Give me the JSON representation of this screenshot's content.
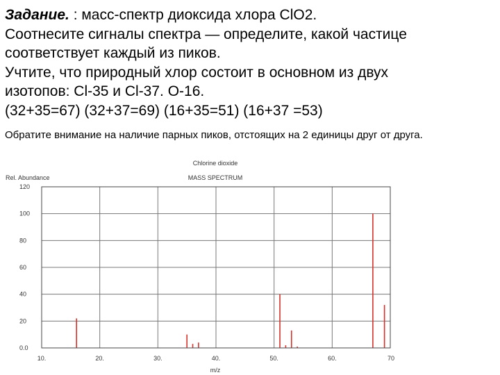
{
  "task": {
    "label": "Задание.",
    "lines": [
      " : масс-спектр диоксида хлора ClO2.",
      "Соотнесите сигналы спектра — определите, какой частице",
      "соответствует каждый из пиков.",
      "Учтите, что природный хлор состоит в основном из двух",
      "изотопов: Cl-35 и Cl-37. O-16.",
      " (32+35=67) (32+37=69) (16+35=51) (16+37 =53)"
    ]
  },
  "note": "Обратите внимание на наличие парных пиков, отстоящих на 2 единицы друг от друга.",
  "dot": ".",
  "chart_data": {
    "type": "bar",
    "title": "Chlorine dioxide",
    "subtitle": "MASS SPECTRUM",
    "ylabel": "Rel. Abundance",
    "xlabel": "m/z",
    "xlim": [
      10,
      70
    ],
    "ylim": [
      0,
      120
    ],
    "xticks": [
      "10.",
      "20.",
      "30.",
      "40.",
      "50.",
      "60.",
      "70"
    ],
    "yticks": [
      "0.0",
      "20",
      "40",
      "60",
      "80",
      "100",
      "120"
    ],
    "peak_color": "#d9302a",
    "peaks": [
      {
        "x": 16,
        "y": 22
      },
      {
        "x": 35,
        "y": 10
      },
      {
        "x": 36,
        "y": 3
      },
      {
        "x": 37,
        "y": 4
      },
      {
        "x": 51,
        "y": 40
      },
      {
        "x": 52,
        "y": 2
      },
      {
        "x": 53,
        "y": 13
      },
      {
        "x": 54,
        "y": 1
      },
      {
        "x": 67,
        "y": 100
      },
      {
        "x": 69,
        "y": 32
      }
    ]
  }
}
